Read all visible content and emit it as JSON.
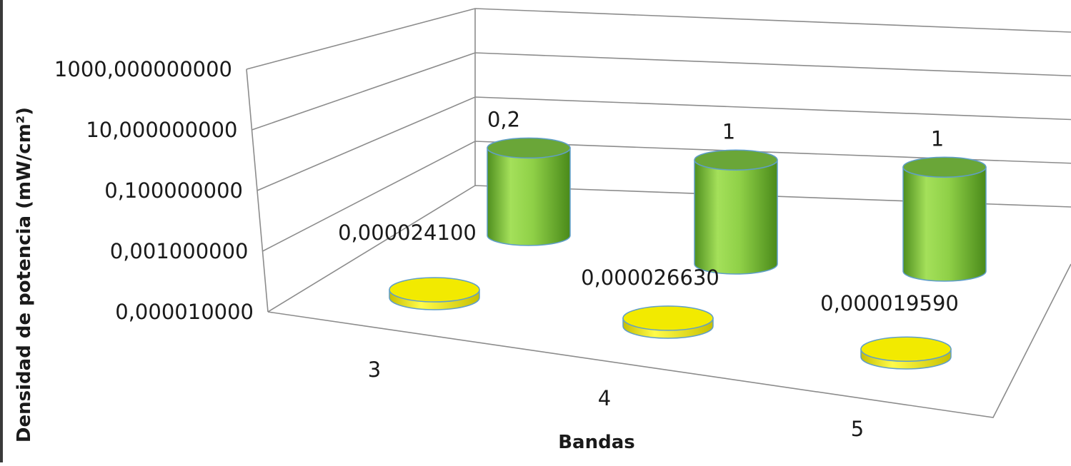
{
  "chart_data": {
    "type": "bar",
    "style": "3d-cylinder",
    "scale": "log",
    "ylabel": "Densidad de potencia (mW/cm²)",
    "xlabel": "Bandas",
    "yticks": [
      "0,000010000",
      "0,001000000",
      "0,100000000",
      "10,000000000",
      "1000,000000000"
    ],
    "ylim": [
      1e-05,
      1000
    ],
    "categories": [
      "3",
      "4",
      "5"
    ],
    "series": [
      {
        "color": "#7dc242",
        "values": [
          0.2,
          1,
          1
        ],
        "labels": [
          "0,2",
          "1",
          "1"
        ]
      },
      {
        "color": "#f2ea00",
        "values": [
          2.41e-05,
          2.663e-05,
          1.959e-05
        ],
        "labels": [
          "0,000024100",
          "0,000026630",
          "0,000019590"
        ]
      }
    ],
    "grid": true,
    "legend": "none"
  }
}
